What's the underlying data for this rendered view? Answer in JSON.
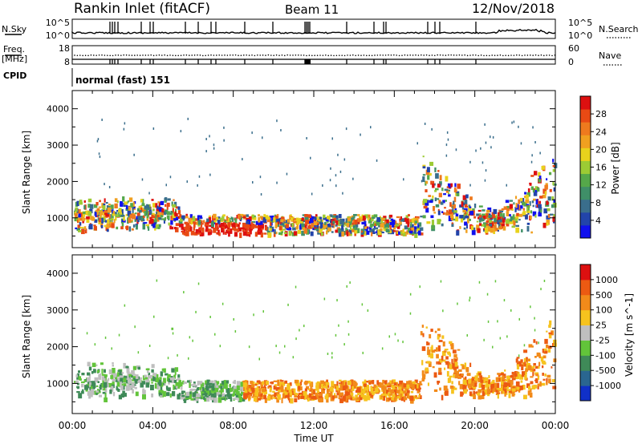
{
  "header": {
    "station": "Rankin Inlet (fitACF)",
    "beam": "Beam 11",
    "date": "12/Nov/2018"
  },
  "strips": {
    "nsky": {
      "label": "N.Sky",
      "ticks": [
        "10^5",
        "10^0"
      ],
      "right_label": "N.Search",
      "right_ticks": [
        "10^5",
        "10^0"
      ]
    },
    "freq": {
      "label_line1": "Freq.",
      "label_line2": "[MHz]",
      "ticks": [
        "18",
        "8"
      ],
      "right_label": "Nave",
      "right_ticks": [
        "60",
        "0"
      ]
    },
    "cpid": {
      "label": "CPID",
      "value": "normal (fast) 151"
    }
  },
  "chart_data": [
    {
      "type": "heatmap",
      "parameter": "power",
      "ylabel": "Slant Range [km]",
      "ylim": [
        180,
        4500
      ],
      "yticks": [
        "1000",
        "2000",
        "3000",
        "4000"
      ],
      "colorbar": {
        "label": "Power [dB]",
        "range": [
          0,
          32
        ],
        "ticks": [
          "4",
          "8",
          "12",
          "16",
          "20",
          "24",
          "28"
        ],
        "colors": [
          "#1010ee",
          "#2244aa",
          "#3a6e8c",
          "#3f8f68",
          "#55a84a",
          "#9ccb34",
          "#e8d21c",
          "#f0a020",
          "#ee7a1e",
          "#e84a14",
          "#dd1010"
        ]
      }
    },
    {
      "type": "heatmap",
      "parameter": "velocity",
      "ylabel": "Slant Range [km]",
      "ylim": [
        180,
        4500
      ],
      "yticks": [
        "1000",
        "2000",
        "3000",
        "4000"
      ],
      "colorbar": {
        "label": "Velocity [m s^-1]",
        "ticks": [
          "1000",
          "500",
          "100",
          "25",
          "-25",
          "-100",
          "-500",
          "-1000"
        ],
        "colors": [
          "#1030c8",
          "#2a6690",
          "#3f8a58",
          "#62c43a",
          "#bfbfbf",
          "#f6c31e",
          "#f28a1a",
          "#ec5a12",
          "#dd1010"
        ]
      }
    }
  ],
  "xaxis": {
    "label": "Time UT",
    "ticks": [
      "00:00",
      "04:00",
      "08:00",
      "12:00",
      "16:00",
      "20:00",
      "00:00"
    ]
  }
}
